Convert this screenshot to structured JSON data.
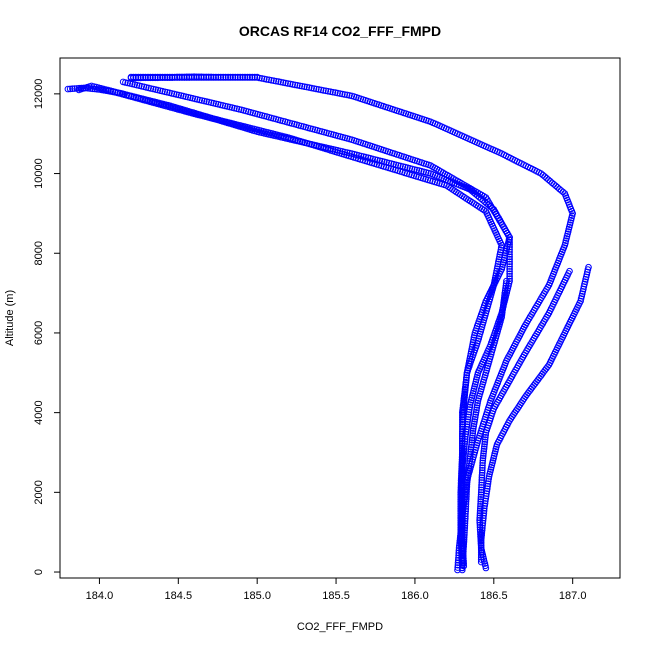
{
  "chart_data": {
    "type": "scatter",
    "title": "ORCAS RF14 CO2_FFF_FMPD",
    "xlabel": "CO2_FFF_FMPD",
    "ylabel": "Altitude (m)",
    "xlim": [
      183.75,
      187.3
    ],
    "ylim": [
      -150,
      12900
    ],
    "xticks": [
      184.0,
      184.5,
      185.0,
      185.5,
      186.0,
      186.5,
      187.0
    ],
    "xtick_labels": [
      "184.0",
      "184.5",
      "185.0",
      "185.5",
      "186.0",
      "186.5",
      "187.0"
    ],
    "yticks": [
      0,
      2000,
      4000,
      6000,
      8000,
      10000,
      12000
    ],
    "ytick_labels": [
      "0",
      "2000",
      "4000",
      "6000",
      "8000",
      "10000",
      "12000"
    ],
    "grid": false,
    "marker": "open-circle",
    "color": "#0000ff",
    "series": [
      {
        "points": [
          [
            184.2,
            12400
          ],
          [
            184.6,
            12410
          ],
          [
            185.0,
            12410
          ],
          [
            185.6,
            11950
          ],
          [
            186.1,
            11300
          ],
          [
            186.55,
            10500
          ],
          [
            186.8,
            10000
          ],
          [
            186.95,
            9500
          ],
          [
            187.0,
            9000
          ],
          [
            186.95,
            8200
          ],
          [
            186.85,
            7200
          ],
          [
            186.7,
            6200
          ],
          [
            186.58,
            5300
          ],
          [
            186.48,
            4300
          ],
          [
            186.4,
            3300
          ],
          [
            186.33,
            2300
          ],
          [
            186.3,
            1400
          ],
          [
            186.28,
            600
          ],
          [
            186.27,
            50
          ]
        ]
      },
      {
        "points": [
          [
            183.87,
            12100
          ],
          [
            183.95,
            12200
          ],
          [
            184.1,
            12050
          ],
          [
            184.45,
            11700
          ],
          [
            185.0,
            11050
          ],
          [
            185.6,
            10500
          ],
          [
            186.1,
            10000
          ],
          [
            186.35,
            9600
          ],
          [
            186.5,
            9100
          ],
          [
            186.6,
            8400
          ],
          [
            186.55,
            7600
          ],
          [
            186.45,
            6800
          ],
          [
            186.38,
            6000
          ],
          [
            186.33,
            5000
          ],
          [
            186.3,
            4000
          ],
          [
            186.3,
            3000
          ],
          [
            186.29,
            2000
          ],
          [
            186.29,
            1000
          ],
          [
            186.3,
            50
          ]
        ]
      },
      {
        "points": [
          [
            184.1,
            12040
          ],
          [
            184.6,
            11500
          ],
          [
            185.2,
            10900
          ],
          [
            185.7,
            10300
          ],
          [
            186.2,
            9700
          ],
          [
            186.45,
            9050
          ],
          [
            186.55,
            8200
          ],
          [
            186.5,
            7200
          ],
          [
            186.45,
            6500
          ],
          [
            186.4,
            5800
          ],
          [
            186.33,
            5000
          ],
          [
            186.31,
            4200
          ],
          [
            186.3,
            3400
          ],
          [
            186.3,
            2200
          ],
          [
            186.3,
            1200
          ],
          [
            186.3,
            300
          ]
        ]
      },
      {
        "points": [
          [
            184.15,
            12300
          ],
          [
            184.9,
            11600
          ],
          [
            185.6,
            10850
          ],
          [
            186.1,
            10200
          ],
          [
            186.45,
            9400
          ],
          [
            186.6,
            8400
          ],
          [
            186.6,
            7300
          ],
          [
            186.55,
            6500
          ],
          [
            186.48,
            5700
          ],
          [
            186.4,
            5000
          ],
          [
            186.35,
            4200
          ],
          [
            186.32,
            3400
          ],
          [
            186.3,
            2600
          ],
          [
            186.3,
            1800
          ],
          [
            186.3,
            900
          ],
          [
            186.31,
            150
          ]
        ]
      },
      {
        "points": [
          [
            187.1,
            7650
          ],
          [
            187.05,
            6800
          ],
          [
            186.95,
            6000
          ],
          [
            186.85,
            5200
          ],
          [
            186.7,
            4400
          ],
          [
            186.6,
            3800
          ],
          [
            186.52,
            3200
          ],
          [
            186.47,
            2400
          ],
          [
            186.44,
            1600
          ],
          [
            186.42,
            800
          ],
          [
            186.42,
            250
          ]
        ]
      },
      {
        "points": [
          [
            186.98,
            7550
          ],
          [
            186.85,
            6500
          ],
          [
            186.7,
            5500
          ],
          [
            186.6,
            4800
          ],
          [
            186.5,
            4100
          ],
          [
            186.45,
            3500
          ],
          [
            186.43,
            2800
          ],
          [
            186.42,
            2000
          ],
          [
            186.41,
            1300
          ],
          [
            186.42,
            600
          ],
          [
            186.45,
            100
          ]
        ]
      },
      {
        "points": [
          [
            186.58,
            7300
          ],
          [
            186.55,
            6400
          ],
          [
            186.5,
            5700
          ],
          [
            186.45,
            5000
          ],
          [
            186.4,
            4300
          ],
          [
            186.37,
            3600
          ],
          [
            186.35,
            2900
          ],
          [
            186.33,
            2200
          ],
          [
            186.32,
            1400
          ],
          [
            186.31,
            700
          ],
          [
            186.3,
            100
          ]
        ]
      },
      {
        "points": [
          [
            184.2,
            12420
          ],
          [
            184.4,
            12420
          ],
          [
            184.6,
            12430
          ],
          [
            184.8,
            12420
          ],
          [
            185.0,
            12420
          ]
        ]
      },
      {
        "points": [
          [
            183.8,
            12120
          ],
          [
            183.9,
            12150
          ],
          [
            184.0,
            12110
          ],
          [
            184.1,
            12040
          ],
          [
            184.15,
            12000
          ]
        ]
      }
    ]
  }
}
